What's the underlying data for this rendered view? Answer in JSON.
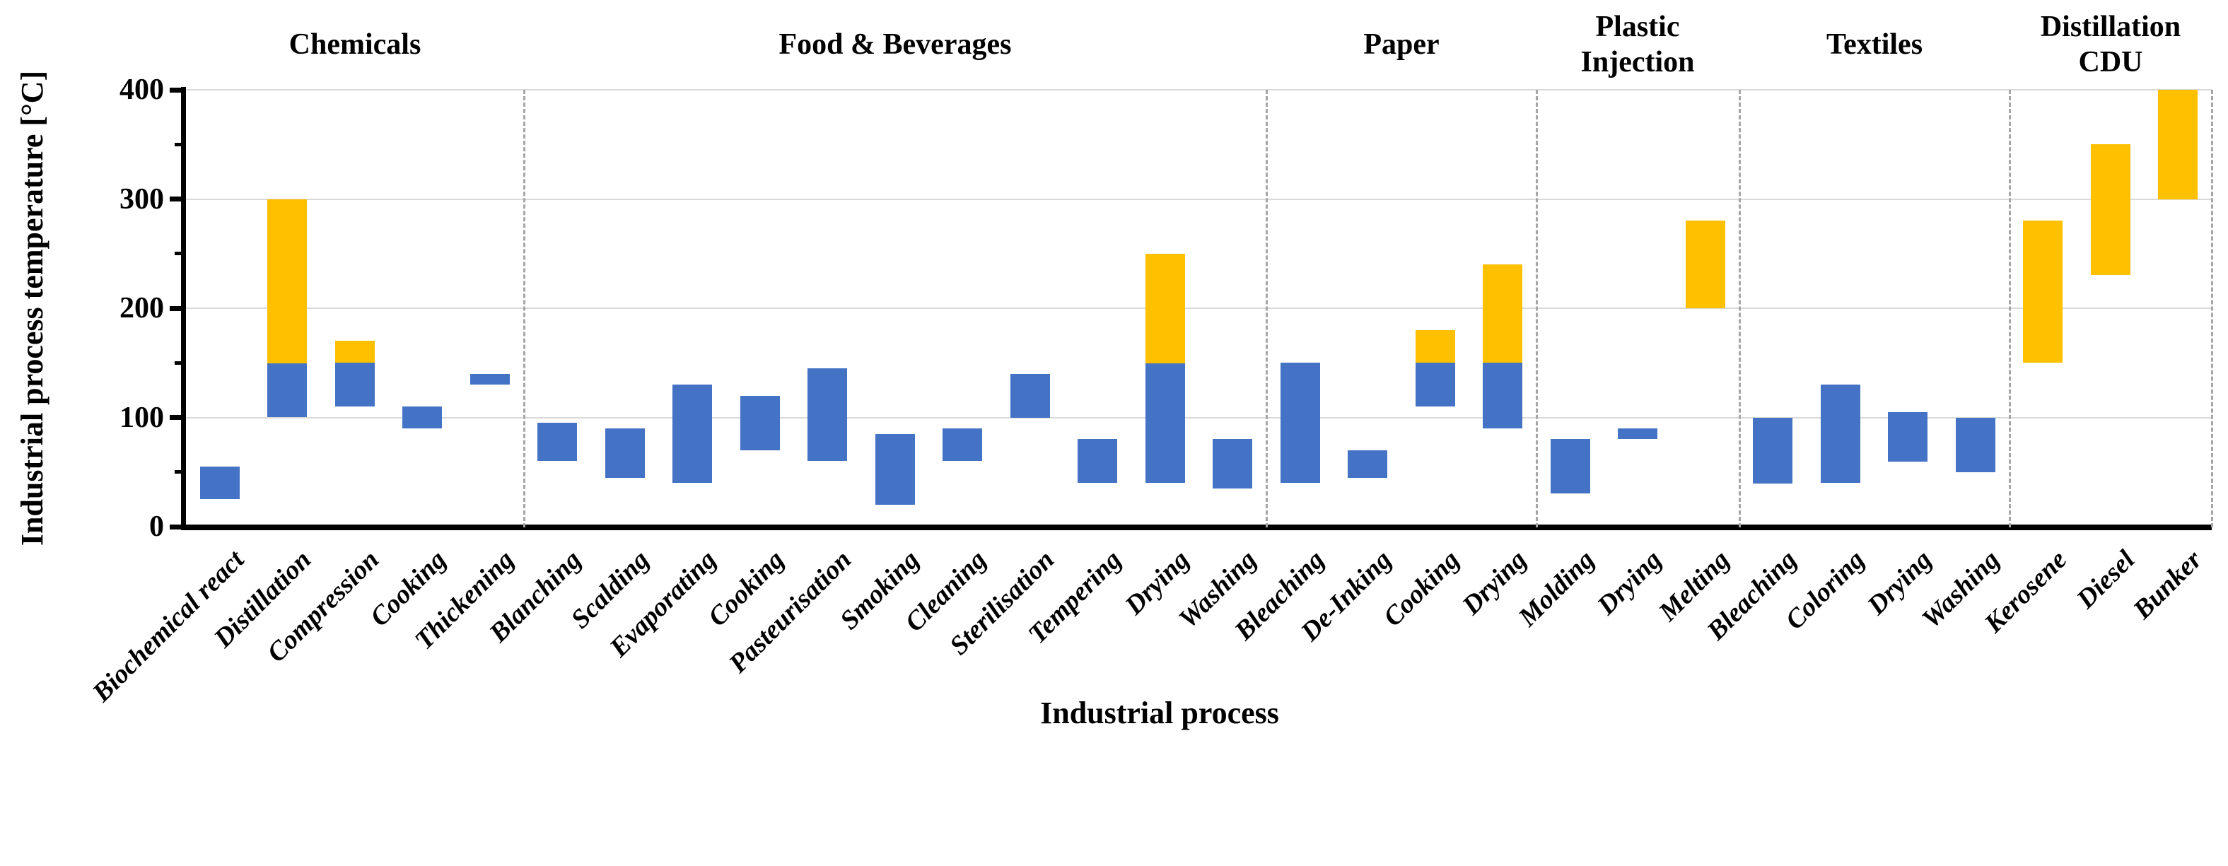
{
  "chart_data": {
    "type": "bar",
    "subtype": "floating-range-bars",
    "xlabel": "Industrial process",
    "ylabel": "Industrial process temperature [°C]",
    "ylim": [
      0,
      400
    ],
    "y_ticks": [
      0,
      100,
      200,
      300,
      400
    ],
    "y_minor_ticks": [
      50,
      150,
      250,
      350
    ],
    "grid": "horizontal major gridlines",
    "grid_color": "#d9d9d9",
    "separator_color": "#a6a6a6",
    "axis_color": "#000000",
    "legend": "none",
    "series_colors": {
      "low": "#4472C4",
      "high": "#FFC000"
    },
    "tick_label_rotation_deg": 45,
    "groups": [
      {
        "label": "Chemicals",
        "processes": [
          {
            "name": "Biochemical react",
            "ranges": [
              {
                "series": "low",
                "from": 25,
                "to": 55
              }
            ]
          },
          {
            "name": "Distillation",
            "ranges": [
              {
                "series": "low",
                "from": 100,
                "to": 150
              },
              {
                "series": "high",
                "from": 150,
                "to": 300
              }
            ]
          },
          {
            "name": "Compression",
            "ranges": [
              {
                "series": "low",
                "from": 110,
                "to": 150
              },
              {
                "series": "high",
                "from": 150,
                "to": 170
              }
            ]
          },
          {
            "name": "Cooking",
            "ranges": [
              {
                "series": "low",
                "from": 90,
                "to": 110
              }
            ]
          },
          {
            "name": "Thickening",
            "ranges": [
              {
                "series": "low",
                "from": 130,
                "to": 140
              }
            ]
          }
        ]
      },
      {
        "label": "Food & Beverages",
        "processes": [
          {
            "name": "Blanching",
            "ranges": [
              {
                "series": "low",
                "from": 60,
                "to": 95
              }
            ]
          },
          {
            "name": "Scalding",
            "ranges": [
              {
                "series": "low",
                "from": 45,
                "to": 90
              }
            ]
          },
          {
            "name": "Evaporating",
            "ranges": [
              {
                "series": "low",
                "from": 40,
                "to": 130
              }
            ]
          },
          {
            "name": "Cooking",
            "ranges": [
              {
                "series": "low",
                "from": 70,
                "to": 120
              }
            ]
          },
          {
            "name": "Pasteurisation",
            "ranges": [
              {
                "series": "low",
                "from": 60,
                "to": 145
              }
            ]
          },
          {
            "name": "Smoking",
            "ranges": [
              {
                "series": "low",
                "from": 20,
                "to": 85
              }
            ]
          },
          {
            "name": "Cleaning",
            "ranges": [
              {
                "series": "low",
                "from": 60,
                "to": 90
              }
            ]
          },
          {
            "name": "Sterilisation",
            "ranges": [
              {
                "series": "low",
                "from": 100,
                "to": 140
              }
            ]
          },
          {
            "name": "Tempering",
            "ranges": [
              {
                "series": "low",
                "from": 40,
                "to": 80
              }
            ]
          },
          {
            "name": "Drying",
            "ranges": [
              {
                "series": "low",
                "from": 40,
                "to": 150
              },
              {
                "series": "high",
                "from": 150,
                "to": 250
              }
            ]
          },
          {
            "name": "Washing",
            "ranges": [
              {
                "series": "low",
                "from": 35,
                "to": 80
              }
            ]
          }
        ]
      },
      {
        "label": "Paper",
        "processes": [
          {
            "name": "Bleaching",
            "ranges": [
              {
                "series": "low",
                "from": 40,
                "to": 150
              }
            ]
          },
          {
            "name": "De-Inking",
            "ranges": [
              {
                "series": "low",
                "from": 45,
                "to": 70
              }
            ]
          },
          {
            "name": "Cooking",
            "ranges": [
              {
                "series": "low",
                "from": 110,
                "to": 150
              },
              {
                "series": "high",
                "from": 150,
                "to": 180
              }
            ]
          },
          {
            "name": "Drying",
            "ranges": [
              {
                "series": "low",
                "from": 90,
                "to": 150
              },
              {
                "series": "high",
                "from": 150,
                "to": 240
              }
            ]
          }
        ]
      },
      {
        "label": "Plastic\nInjection",
        "processes": [
          {
            "name": "Molding",
            "ranges": [
              {
                "series": "low",
                "from": 30,
                "to": 80
              }
            ]
          },
          {
            "name": "Drying",
            "ranges": [
              {
                "series": "low",
                "from": 80,
                "to": 90
              }
            ]
          },
          {
            "name": "Melting",
            "ranges": [
              {
                "series": "high",
                "from": 200,
                "to": 280
              }
            ]
          }
        ]
      },
      {
        "label": "Textiles",
        "processes": [
          {
            "name": "Bleaching",
            "ranges": [
              {
                "series": "low",
                "from": 40,
                "to": 100
              }
            ]
          },
          {
            "name": "Coloring",
            "ranges": [
              {
                "series": "low",
                "from": 40,
                "to": 130
              }
            ]
          },
          {
            "name": "Drying",
            "ranges": [
              {
                "series": "low",
                "from": 60,
                "to": 105
              }
            ]
          },
          {
            "name": "Washing",
            "ranges": [
              {
                "series": "low",
                "from": 50,
                "to": 100
              }
            ]
          }
        ]
      },
      {
        "label": "Distillation\nCDU",
        "processes": [
          {
            "name": "Kerosene",
            "ranges": [
              {
                "series": "high",
                "from": 150,
                "to": 280
              }
            ]
          },
          {
            "name": "Diesel",
            "ranges": [
              {
                "series": "high",
                "from": 230,
                "to": 350
              }
            ]
          },
          {
            "name": "Bunker",
            "ranges": [
              {
                "series": "high",
                "from": 300,
                "to": 400
              }
            ]
          }
        ]
      }
    ]
  }
}
